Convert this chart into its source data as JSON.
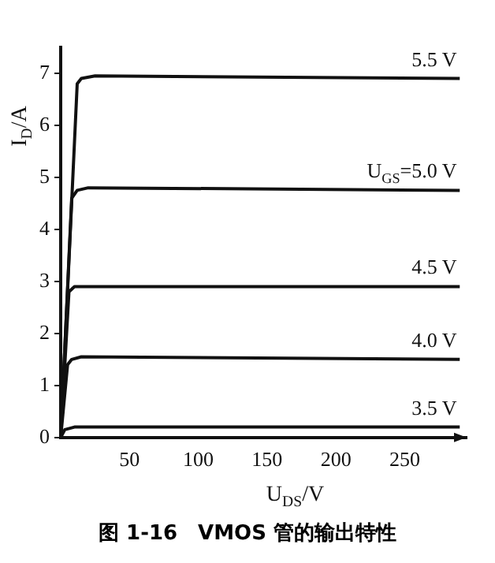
{
  "chart_data": {
    "type": "line",
    "xlabel": "U$_{DS}$/V",
    "ylabel": "I$_{D}$/A",
    "annotations": [
      "图 1-16　VMOS 管的输出特性"
    ],
    "series": [
      {
        "name": "5.5 V",
        "color": "#111111",
        "x": [
          0,
          12,
          15,
          25,
          290
        ],
        "values": [
          0,
          6.8,
          6.9,
          6.95,
          6.9
        ]
      },
      {
        "name": "U$_{GS}$=5.0 V",
        "color": "#111111",
        "x": [
          0,
          8,
          12,
          20,
          290
        ],
        "values": [
          0,
          4.6,
          4.75,
          4.8,
          4.75
        ]
      },
      {
        "name": "4.5 V",
        "color": "#111111",
        "x": [
          0,
          6,
          10,
          290
        ],
        "values": [
          0,
          2.8,
          2.9,
          2.9
        ]
      },
      {
        "name": "4.0 V",
        "color": "#111111",
        "x": [
          0,
          5,
          8,
          15,
          290
        ],
        "values": [
          0,
          1.4,
          1.5,
          1.55,
          1.5
        ]
      },
      {
        "name": "3.5 V",
        "color": "#111111",
        "x": [
          0,
          3,
          10,
          290
        ],
        "values": [
          0,
          0.15,
          0.2,
          0.2
        ]
      }
    ],
    "xlim": [
      0,
      295
    ],
    "xticks": [
      50,
      100,
      150,
      200,
      250
    ],
    "ylim": [
      0,
      7.5
    ],
    "yticks": [
      0,
      1,
      2,
      3,
      4,
      5,
      6,
      7
    ],
    "grid": false,
    "legend": false,
    "marker": "none",
    "line_style": "solid"
  }
}
